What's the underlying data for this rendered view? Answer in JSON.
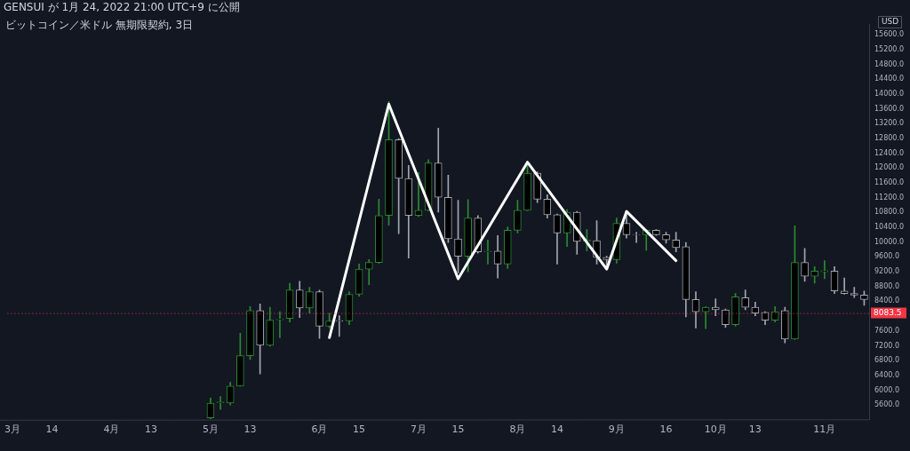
{
  "chart_data": {
    "type": "candlestick",
    "title": "ビットコイン／米ドル 無期限契約, 3日",
    "ylabel": "USD",
    "annotations": [
      "GENSUI が 1月 24, 2022 21:00 UTC+9 に公開"
    ],
    "categories": [
      "3月",
      null,
      null,
      null,
      "14",
      null,
      null,
      null,
      null,
      null,
      "4月",
      null,
      null,
      null,
      "13",
      null,
      null,
      null,
      null,
      null,
      "5月",
      null,
      null,
      null,
      "13",
      null,
      null,
      null,
      null,
      null,
      null,
      "6月",
      null,
      null,
      null,
      "15",
      null,
      null,
      null,
      null,
      null,
      "7月",
      null,
      null,
      null,
      "15",
      null,
      null,
      null,
      null,
      null,
      "8月",
      null,
      null,
      null,
      "14",
      null,
      null,
      null,
      null,
      null,
      "9月",
      null,
      null,
      null,
      null,
      "16",
      null,
      null,
      null,
      null,
      "10月",
      null,
      null,
      null,
      "13",
      null,
      null,
      null,
      null,
      null,
      null,
      "11月",
      null,
      null,
      null,
      null
    ],
    "ohlc": [
      null,
      null,
      null,
      null,
      null,
      null,
      null,
      null,
      null,
      null,
      null,
      null,
      null,
      null,
      null,
      null,
      null,
      null,
      null,
      null,
      [
        5250,
        5790,
        5230,
        5650
      ],
      [
        5660,
        5830,
        5480,
        5680
      ],
      [
        5650,
        6210,
        5600,
        6110
      ],
      [
        6110,
        7540,
        6100,
        6930
      ],
      [
        6930,
        8260,
        6830,
        8150
      ],
      [
        8150,
        8330,
        6440,
        7210
      ],
      [
        7210,
        8240,
        7190,
        7890
      ],
      [
        7900,
        8120,
        7420,
        7930
      ],
      [
        7940,
        8890,
        7840,
        8710
      ],
      [
        8710,
        8940,
        7960,
        8220
      ],
      [
        8220,
        8780,
        8080,
        8660
      ],
      [
        8660,
        8700,
        7400,
        7730
      ],
      [
        7730,
        8080,
        7680,
        7870
      ],
      [
        7880,
        8010,
        7450,
        7860
      ],
      [
        7870,
        8660,
        7770,
        8590
      ],
      [
        8590,
        9410,
        8540,
        9270
      ],
      [
        9270,
        9530,
        8850,
        9450
      ],
      [
        9450,
        11160,
        9430,
        10720
      ],
      [
        10720,
        13800,
        10460,
        12770
      ],
      [
        12770,
        12800,
        10230,
        11720
      ],
      [
        11720,
        12070,
        9570,
        10720
      ],
      [
        10720,
        11880,
        10690,
        10860
      ],
      [
        10860,
        12230,
        10850,
        12140
      ],
      [
        12140,
        13080,
        10810,
        11210
      ],
      [
        11210,
        11810,
        9990,
        10090
      ],
      [
        10090,
        11130,
        9170,
        9620
      ],
      [
        9620,
        11150,
        9200,
        10650
      ],
      [
        10650,
        10720,
        9700,
        9740
      ],
      [
        9740,
        10060,
        9410,
        9760
      ],
      [
        9760,
        10180,
        9030,
        9410
      ],
      [
        9410,
        10410,
        9290,
        10320
      ],
      [
        10320,
        11130,
        10250,
        10860
      ],
      [
        10860,
        12120,
        10850,
        11860
      ],
      [
        11860,
        11900,
        11070,
        11160
      ],
      [
        11160,
        11280,
        10650,
        10740
      ],
      [
        10740,
        10760,
        9410,
        10250
      ],
      [
        10250,
        10880,
        9880,
        10810
      ],
      [
        10810,
        10830,
        9670,
        10020
      ],
      [
        10020,
        10340,
        9760,
        10060
      ],
      [
        10040,
        10580,
        9410,
        9590
      ],
      [
        9590,
        9620,
        9310,
        9530
      ],
      [
        9530,
        10650,
        9430,
        10510
      ],
      [
        10510,
        10760,
        10110,
        10200
      ],
      [
        10210,
        10270,
        9990,
        10200
      ],
      [
        10200,
        10340,
        9780,
        10320
      ],
      [
        10320,
        10340,
        10180,
        10200
      ],
      [
        10200,
        10270,
        9970,
        10060
      ],
      [
        10060,
        10270,
        9740,
        9850
      ],
      [
        9880,
        9990,
        7980,
        8450
      ],
      [
        8450,
        8660,
        7680,
        8120
      ],
      [
        8120,
        8260,
        7660,
        8240
      ],
      [
        8240,
        8470,
        8010,
        8170
      ],
      [
        8170,
        8190,
        7700,
        7770
      ],
      [
        7770,
        8610,
        7730,
        8520
      ],
      [
        8500,
        8710,
        8170,
        8240
      ],
      [
        8240,
        8380,
        8010,
        8080
      ],
      [
        8100,
        8120,
        7770,
        7890
      ],
      [
        7890,
        8260,
        7840,
        8120
      ],
      [
        8150,
        8240,
        7280,
        7380
      ],
      [
        7380,
        10440,
        7370,
        9450
      ],
      [
        9450,
        9830,
        8940,
        9080
      ],
      [
        9080,
        9340,
        8890,
        9220
      ],
      [
        9200,
        9500,
        9010,
        9230
      ],
      [
        9220,
        9340,
        8610,
        8680
      ],
      [
        8680,
        9030,
        8590,
        8610
      ],
      [
        8610,
        8780,
        8500,
        8570
      ],
      [
        8570,
        8680,
        8290,
        8450
      ]
    ],
    "colors": [
      null,
      null,
      null,
      null,
      null,
      null,
      null,
      null,
      null,
      null,
      null,
      null,
      null,
      null,
      null,
      null,
      null,
      null,
      null,
      null,
      "#2b8a30",
      "#2b8a30",
      "#2b8a30",
      "#2b8a30",
      "#2b8a30",
      "#a3a6af",
      "#2b8a30",
      "#2b8a30",
      "#2b8a30",
      "#a3a6af",
      "#2b8a30",
      "#a3a6af",
      "#2b8a30",
      "#a3a6af",
      "#2b8a30",
      "#2b8a30",
      "#2b8a30",
      "#2b8a30",
      "#2b8a30",
      "#a3a6af",
      "#a3a6af",
      "#2b8a30",
      "#2b8a30",
      "#a3a6af",
      "#a3a6af",
      "#a3a6af",
      "#2b8a30",
      "#a3a6af",
      "#2b8a30",
      "#a3a6af",
      "#2b8a30",
      "#2b8a30",
      "#2b8a30",
      "#a3a6af",
      "#a3a6af",
      "#a3a6af",
      "#2b8a30",
      "#a3a6af",
      "#2b8a30",
      "#a3a6af",
      "#a3a6af",
      "#2b8a30",
      "#a3a6af",
      "#a3a6af",
      "#2b8a30",
      "#a3a6af",
      "#a3a6af",
      "#a3a6af",
      "#a3a6af",
      "#a3a6af",
      "#2b8a30",
      "#a3a6af",
      "#a3a6af",
      "#2b8a30",
      "#a3a6af",
      "#a3a6af",
      "#a3a6af",
      "#2b8a30",
      "#a3a6af",
      "#2b8a30",
      "#a3a6af",
      "#2b8a30",
      "#2b8a30",
      "#a3a6af",
      "#a3a6af",
      "#a3a6af",
      "#a3a6af"
    ],
    "series": [
      {
        "type": "line",
        "color": "#ffffff",
        "values": [
          null,
          null,
          null,
          null,
          null,
          null,
          null,
          null,
          null,
          null,
          null,
          null,
          null,
          null,
          null,
          null,
          null,
          null,
          null,
          null,
          null,
          null,
          null,
          null,
          null,
          null,
          null,
          null,
          null,
          null,
          null,
          null,
          7420,
          null,
          null,
          null,
          null,
          null,
          13730,
          null,
          null,
          null,
          null,
          null,
          null,
          9010,
          null,
          null,
          null,
          null,
          null,
          null,
          12160,
          null,
          null,
          null,
          null,
          null,
          null,
          null,
          9270,
          null,
          10830,
          null,
          null,
          null,
          null,
          9500,
          null,
          null,
          null,
          null,
          null,
          null,
          null,
          null,
          null,
          null,
          null,
          null,
          null,
          null,
          null,
          null,
          null,
          null,
          null
        ]
      }
    ],
    "ylim": [
      5200,
      15900
    ],
    "yticks": [
      {
        "value": 5600,
        "label": "5600.0"
      },
      {
        "value": 6000,
        "label": "6000.0"
      },
      {
        "value": 6400,
        "label": "6400.0"
      },
      {
        "value": 6800,
        "label": "6800.0"
      },
      {
        "value": 7200,
        "label": "7200.0"
      },
      {
        "value": 7600,
        "label": "7600.0"
      },
      {
        "value": 8400,
        "label": "8400.0"
      },
      {
        "value": 8800,
        "label": "8800.0"
      },
      {
        "value": 9200,
        "label": "9200.0"
      },
      {
        "value": 9600,
        "label": "9600.0"
      },
      {
        "value": 10000,
        "label": "10000.0"
      },
      {
        "value": 10400,
        "label": "10400.0"
      },
      {
        "value": 10800,
        "label": "10800.0"
      },
      {
        "value": 11200,
        "label": "11200.0"
      },
      {
        "value": 11600,
        "label": "11600.0"
      },
      {
        "value": 12000,
        "label": "12000.0"
      },
      {
        "value": 12400,
        "label": "12400.0"
      },
      {
        "value": 12800,
        "label": "12800.0"
      },
      {
        "value": 13200,
        "label": "13200.0"
      },
      {
        "value": 13600,
        "label": "13600.0"
      },
      {
        "value": 14000,
        "label": "14000.0"
      },
      {
        "value": 14400,
        "label": "14400.0"
      },
      {
        "value": 14800,
        "label": "14800.0"
      },
      {
        "value": 15200,
        "label": "15200.0"
      },
      {
        "value": 15600,
        "label": "15600.0"
      }
    ],
    "ref_lines": [
      {
        "axis": "y",
        "value": 8083.5,
        "label": "8083.5",
        "color": "#f23645"
      }
    ],
    "marker": "none",
    "line_style": "solid"
  }
}
